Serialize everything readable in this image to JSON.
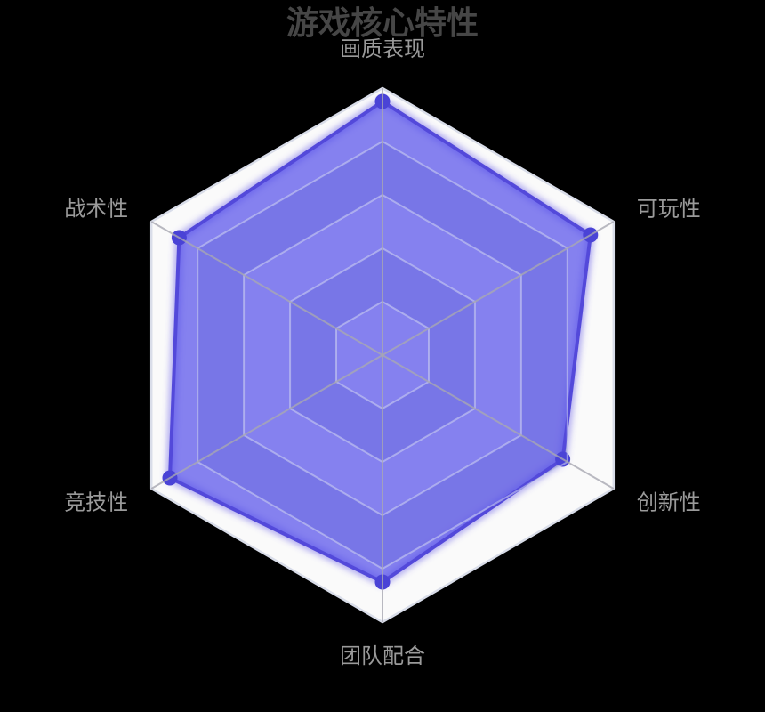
{
  "page": {
    "background": "#000000"
  },
  "chart_data": {
    "type": "radar",
    "title": "游戏核心特性",
    "indicators": [
      {
        "name": "画质表现",
        "max": 100
      },
      {
        "name": "可玩性",
        "max": 100
      },
      {
        "name": "创新性",
        "max": 100
      },
      {
        "name": "团队配合",
        "max": 100
      },
      {
        "name": "竞技性",
        "max": 100
      },
      {
        "name": "战术性",
        "max": 100
      }
    ],
    "series": [
      {
        "name": "游戏核心特性",
        "values": [
          95,
          90,
          78,
          85,
          92,
          88
        ]
      }
    ],
    "rings": 5,
    "legend_position": "none",
    "grid": "hexagonal",
    "colors": {
      "background": "#000000",
      "title": "#464646",
      "axis_label": "#9a9a9a",
      "band_light": "#fafafa",
      "band_dark": "#ced2de",
      "outer_border": "#d9dde9",
      "ring_line": "rgba(210,214,240,0.55)",
      "spoke_line": "rgba(168,168,178,0.8)",
      "area_fill": "rgba(88,82,234,0.72)",
      "line": "#5349da",
      "halo": "rgba(90,80,228,0.45)",
      "point": "#4a43d6"
    }
  }
}
